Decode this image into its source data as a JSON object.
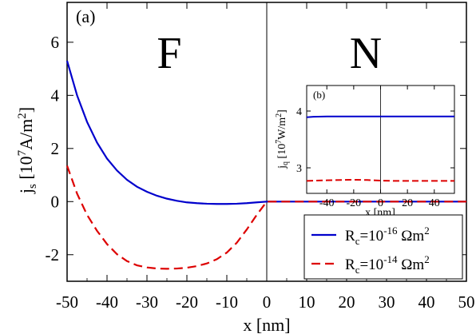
{
  "chart_data": [
    {
      "type": "line",
      "panel": "(a)",
      "xlabel": "x [nm]",
      "ylabel": {
        "base": "j",
        "sub": "s",
        "pre": "[10",
        "exp": "7",
        "mid": "A/m",
        "exp2": "2",
        "post": "]"
      },
      "xlim": [
        -50,
        50
      ],
      "ylim": [
        -3,
        7.5
      ],
      "xticks": [
        -50,
        -40,
        -30,
        -20,
        -10,
        0,
        10,
        20,
        30,
        40,
        50
      ],
      "yticks": [
        -2,
        0,
        2,
        4,
        6
      ],
      "region_labels": [
        "F",
        "N"
      ],
      "legend_position": "lower-right",
      "series": [
        {
          "name": {
            "base": "R",
            "sub": "c",
            "pre": "=10",
            "exp": "-16",
            "post": " Ωm",
            "exp2": "2"
          },
          "color": "#0000cc",
          "dash": "solid",
          "x": [
            -50,
            -47.5,
            -45,
            -42.5,
            -40,
            -37.5,
            -35,
            -32.5,
            -30,
            -27.5,
            -25,
            -22.5,
            -20,
            -17.5,
            -15,
            -12.5,
            -10,
            -7.5,
            -5,
            -2.5,
            0,
            10,
            20,
            30,
            40,
            50
          ],
          "y": [
            5.3,
            4.0,
            3.0,
            2.22,
            1.62,
            1.17,
            0.82,
            0.56,
            0.37,
            0.22,
            0.11,
            0.03,
            -0.03,
            -0.06,
            -0.08,
            -0.09,
            -0.09,
            -0.08,
            -0.06,
            -0.03,
            0.0,
            0.0,
            0.0,
            0.0,
            0.0,
            0.0
          ]
        },
        {
          "name": {
            "base": "R",
            "sub": "c",
            "pre": "=10",
            "exp": "-14",
            "post": " Ωm",
            "exp2": "2"
          },
          "color": "#dd0000",
          "dash": "dashed",
          "x": [
            -50,
            -47.5,
            -45,
            -42.5,
            -40,
            -37.5,
            -35,
            -32.5,
            -30,
            -27.5,
            -25,
            -22.5,
            -20,
            -17.5,
            -15,
            -12.5,
            -10,
            -7.5,
            -5,
            -2.5,
            0,
            10,
            20,
            30,
            40,
            50
          ],
          "y": [
            1.35,
            0.3,
            -0.5,
            -1.1,
            -1.6,
            -1.98,
            -2.24,
            -2.4,
            -2.48,
            -2.52,
            -2.53,
            -2.52,
            -2.49,
            -2.43,
            -2.33,
            -2.17,
            -1.92,
            -1.55,
            -1.05,
            -0.5,
            0.0,
            0.0,
            0.0,
            0.0,
            0.0,
            0.0
          ]
        }
      ]
    },
    {
      "type": "line",
      "panel": "(b)",
      "xlabel": "x [nm]",
      "ylabel": {
        "base": "j",
        "sub": "q",
        "pre": "[10",
        "exp": "7",
        "mid": "W/m",
        "exp2": "2",
        "post": "]"
      },
      "xlim": [
        -55,
        55
      ],
      "ylim": [
        2.55,
        4.45
      ],
      "xticks": [
        -40,
        -20,
        0,
        20,
        40
      ],
      "yticks": [
        3,
        4
      ],
      "series": [
        {
          "color": "#0000cc",
          "dash": "solid",
          "x": [
            -55,
            -50,
            -40,
            -20,
            0,
            20,
            40,
            50,
            55
          ],
          "y": [
            3.89,
            3.9,
            3.905,
            3.905,
            3.905,
            3.905,
            3.905,
            3.905,
            3.905
          ]
        },
        {
          "color": "#dd0000",
          "dash": "dashed",
          "x": [
            -55,
            -40,
            -20,
            -10,
            0,
            10,
            20,
            40,
            55
          ],
          "y": [
            2.77,
            2.78,
            2.79,
            2.785,
            2.775,
            2.77,
            2.77,
            2.77,
            2.77
          ]
        }
      ]
    }
  ]
}
